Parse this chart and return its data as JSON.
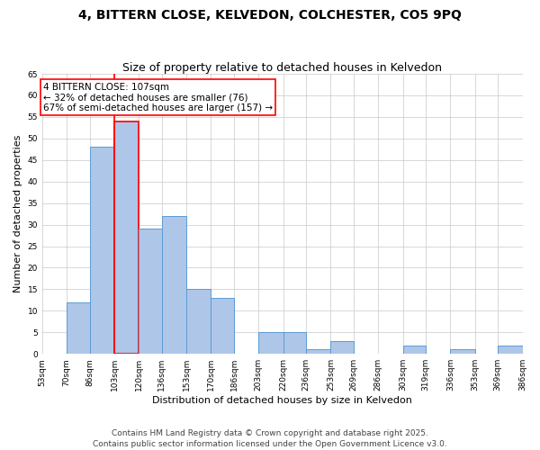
{
  "title": "4, BITTERN CLOSE, KELVEDON, COLCHESTER, CO5 9PQ",
  "subtitle": "Size of property relative to detached houses in Kelvedon",
  "xlabel": "Distribution of detached houses by size in Kelvedon",
  "ylabel": "Number of detached properties",
  "bar_bins": [
    53,
    70,
    86,
    103,
    120,
    136,
    153,
    170,
    186,
    203,
    220,
    236,
    253,
    269,
    286,
    303,
    319,
    336,
    353,
    369,
    386
  ],
  "bar_heights": [
    0,
    12,
    48,
    54,
    29,
    32,
    15,
    13,
    0,
    5,
    5,
    1,
    3,
    0,
    0,
    2,
    0,
    1,
    0,
    2
  ],
  "bar_color": "#aec6e8",
  "bar_edge_color": "#5b9bd5",
  "highlight_bin_index": 3,
  "highlight_color": "#ff0000",
  "property_line_x": 103,
  "annotation_text": "4 BITTERN CLOSE: 107sqm\n← 32% of detached houses are smaller (76)\n67% of semi-detached houses are larger (157) →",
  "annotation_box_color": "#ff0000",
  "annotation_text_color": "#000000",
  "tick_labels": [
    "53sqm",
    "70sqm",
    "86sqm",
    "103sqm",
    "120sqm",
    "136sqm",
    "153sqm",
    "170sqm",
    "186sqm",
    "203sqm",
    "220sqm",
    "236sqm",
    "253sqm",
    "269sqm",
    "286sqm",
    "303sqm",
    "319sqm",
    "336sqm",
    "353sqm",
    "369sqm",
    "386sqm"
  ],
  "ylim": [
    0,
    65
  ],
  "yticks": [
    0,
    5,
    10,
    15,
    20,
    25,
    30,
    35,
    40,
    45,
    50,
    55,
    60,
    65
  ],
  "background_color": "#ffffff",
  "grid_color": "#c8c8c8",
  "footer_text": "Contains HM Land Registry data © Crown copyright and database right 2025.\nContains public sector information licensed under the Open Government Licence v3.0.",
  "title_fontsize": 10,
  "subtitle_fontsize": 9,
  "axis_label_fontsize": 8,
  "tick_fontsize": 6.5,
  "annotation_fontsize": 7.5,
  "footer_fontsize": 6.5,
  "ylabel_fontsize": 8
}
